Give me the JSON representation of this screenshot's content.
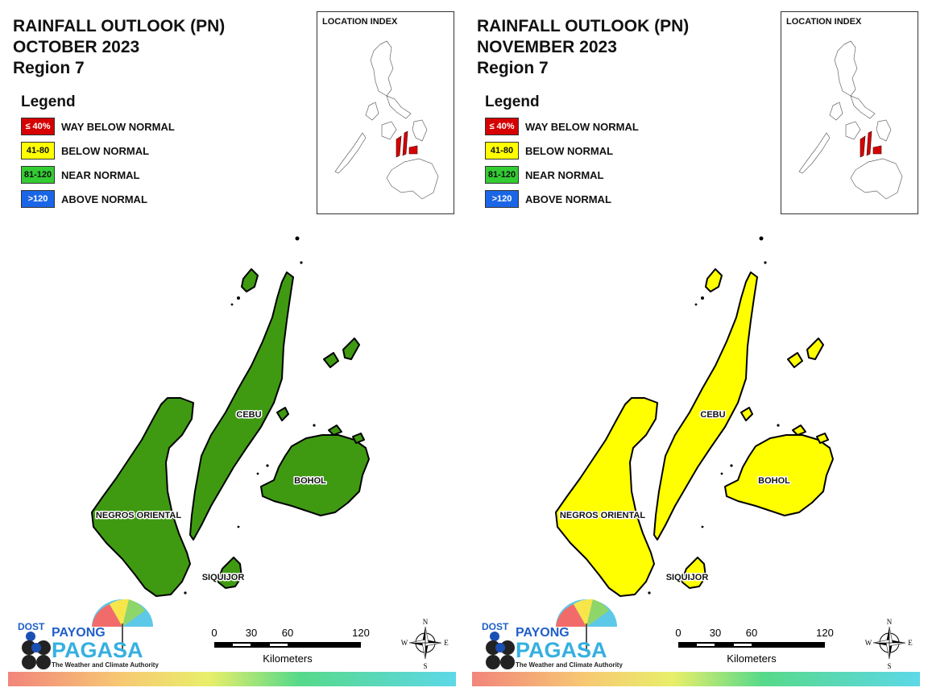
{
  "panels": [
    {
      "id": "oct",
      "title_line1": "RAINFALL OUTLOOK (PN)",
      "title_line2": "OCTOBER 2023",
      "title_line3": "Region 7",
      "fill_color": "#3f9a12",
      "provinces": [
        {
          "name": "CEBU",
          "category": "81-120",
          "condition": "NEAR NORMAL"
        },
        {
          "name": "BOHOL",
          "category": "81-120",
          "condition": "NEAR NORMAL"
        },
        {
          "name": "NEGROS ORIENTAL",
          "category": "81-120",
          "condition": "NEAR NORMAL"
        },
        {
          "name": "SIQUIJOR",
          "category": "81-120",
          "condition": "NEAR NORMAL"
        }
      ]
    },
    {
      "id": "nov",
      "title_line1": "RAINFALL OUTLOOK (PN)",
      "title_line2": "NOVEMBER 2023",
      "title_line3": "Region 7",
      "fill_color": "#ffff00",
      "provinces": [
        {
          "name": "CEBU",
          "category": "41-80",
          "condition": "BELOW NORMAL"
        },
        {
          "name": "BOHOL",
          "category": "41-80",
          "condition": "BELOW NORMAL"
        },
        {
          "name": "NEGROS ORIENTAL",
          "category": "41-80",
          "condition": "BELOW NORMAL"
        },
        {
          "name": "SIQUIJOR",
          "category": "41-80",
          "condition": "BELOW NORMAL"
        }
      ]
    }
  ],
  "legend": {
    "title": "Legend",
    "items": [
      {
        "range": "≤ 40%",
        "label": "WAY BELOW NORMAL",
        "color": "#d60000",
        "text_color": "#ffffff"
      },
      {
        "range": "41-80",
        "label": "BELOW NORMAL",
        "color": "#ffff00",
        "text_color": "#111111"
      },
      {
        "range": "81-120",
        "label": "NEAR NORMAL",
        "color": "#33cc33",
        "text_color": "#111111"
      },
      {
        "range": ">120",
        "label": "ABOVE NORMAL",
        "color": "#1a66e6",
        "text_color": "#ffffff"
      }
    ]
  },
  "location_index": {
    "title": "LOCATION INDEX",
    "highlight_color": "#d60000"
  },
  "scale_bar": {
    "ticks": [
      "0",
      "30",
      "60",
      "120"
    ],
    "unit": "Kilometers"
  },
  "compass": {
    "n": "N",
    "s": "S",
    "e": "E",
    "w": "W"
  },
  "logo": {
    "agency": "DOST",
    "brand1": "PAYONG",
    "brand2": "PAGASA",
    "tagline": "The Weather and Climate Authority"
  }
}
